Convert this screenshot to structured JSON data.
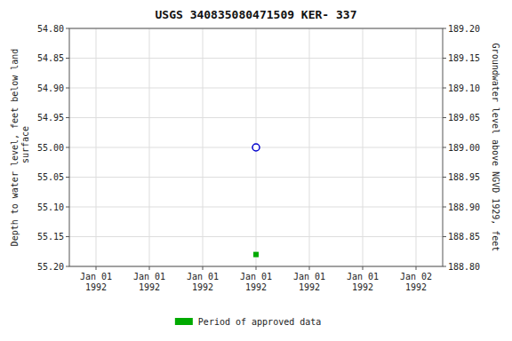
{
  "chart_data": {
    "type": "scatter",
    "title": "USGS 340835080471509 KER- 337",
    "y_label": "Depth to water level, feet below land\n surface",
    "y2_label": "Groundwater level above NGVD 1929, feet",
    "categories": [
      "Jan 01\n1992",
      "Jan 01\n1992",
      "Jan 01\n1992",
      "Jan 01\n1992",
      "Jan 01\n1992",
      "Jan 01\n1992",
      "Jan 02\n1992"
    ],
    "series": [
      {
        "color": "#0000cc",
        "marker": "circle-open",
        "values": [
          null,
          null,
          null,
          55.0,
          null,
          null,
          null
        ]
      },
      {
        "name": "Period of approved data",
        "color": "#00aa00",
        "marker": "square",
        "values": [
          null,
          null,
          null,
          55.18,
          null,
          null,
          null
        ]
      }
    ],
    "ylim": [
      55.2,
      54.8
    ],
    "yticks": [
      {
        "value": 54.8,
        "label": "54.80"
      },
      {
        "value": 54.85,
        "label": "54.85"
      },
      {
        "value": 54.9,
        "label": "54.90"
      },
      {
        "value": 54.95,
        "label": "54.95"
      },
      {
        "value": 55.0,
        "label": "55.00"
      },
      {
        "value": 55.05,
        "label": "55.05"
      },
      {
        "value": 55.1,
        "label": "55.10"
      },
      {
        "value": 55.15,
        "label": "55.15"
      },
      {
        "value": 55.2,
        "label": "55.20"
      }
    ],
    "y2lim": [
      188.8,
      189.2
    ],
    "y2ticks": [
      {
        "value": 188.8,
        "label": "188.80"
      },
      {
        "value": 188.85,
        "label": "188.85"
      },
      {
        "value": 188.9,
        "label": "188.90"
      },
      {
        "value": 188.95,
        "label": "188.95"
      },
      {
        "value": 189.0,
        "label": "189.00"
      },
      {
        "value": 189.05,
        "label": "189.05"
      },
      {
        "value": 189.1,
        "label": "189.10"
      },
      {
        "value": 189.15,
        "label": "189.15"
      },
      {
        "value": 189.2,
        "label": "189.20"
      }
    ],
    "grid": true,
    "legend": "bottom"
  }
}
